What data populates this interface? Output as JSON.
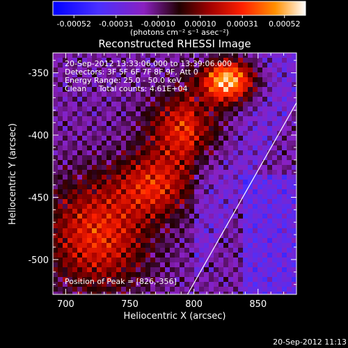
{
  "colorbar": {
    "ticks": [
      "-0.00052",
      "-0.00031",
      "-0.00010",
      "0.00010",
      "0.00031",
      "0.00052"
    ],
    "unit_label": "(photons cm⁻² s⁻¹ asec⁻²)"
  },
  "chart_data": {
    "type": "heatmap",
    "title": "Reconstructed RHESSI Image",
    "xlabel": "Heliocentric X (arcsec)",
    "ylabel": "Heliocentric Y (arcsec)",
    "xlim": [
      690,
      880
    ],
    "ylim": [
      -528,
      -334
    ],
    "x_ticks": [
      700,
      750,
      800,
      850
    ],
    "y_ticks": [
      -350,
      -400,
      -450,
      -500
    ],
    "value_range": [
      -0.00052,
      0.00052
    ],
    "peak": {
      "x": 826,
      "y": -356
    },
    "limb": {
      "x": [
        795,
        880
      ],
      "y": [
        -528,
        -374
      ]
    },
    "grid": false,
    "legend": "none"
  },
  "annotations": {
    "time_range": "20-Sep-2012 13:33:06.000 to 13:39:06.000",
    "detectors": "Detectors: 3F 5F 6F 7F 8F 9F, Att 0",
    "energy": "Energy Range: 25.0 - 50.0 keV",
    "clean": "Clean     Total counts: 4.61E+04",
    "peak_text": "Position of Peak = [826,-356]"
  },
  "footer": {
    "timestamp": "20-Sep-2012 11:13"
  }
}
